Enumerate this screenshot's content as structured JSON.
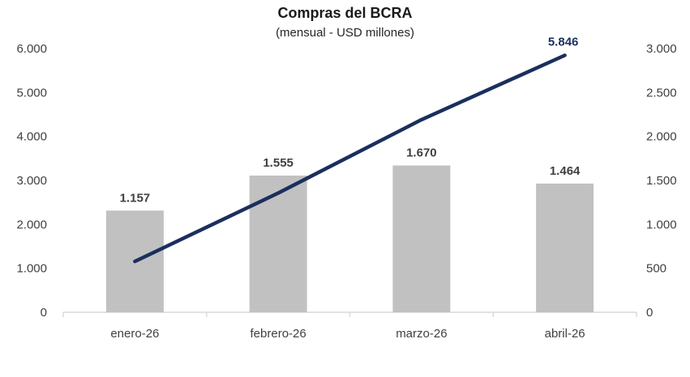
{
  "chart_data": {
    "type": "combo-bar-line",
    "title": "Compras del BCRA",
    "subtitle": "(mensual - USD millones)",
    "categories": [
      "enero-26",
      "febrero-26",
      "marzo-26",
      "abril-26"
    ],
    "series": [
      {
        "type": "bar",
        "axis": "right",
        "values": [
          1157,
          1555,
          1670,
          1464
        ],
        "labels": [
          "1.157",
          "1.555",
          "1.670",
          "1.464"
        ],
        "color": "#C1C1C1"
      },
      {
        "type": "line",
        "axis": "left",
        "values": [
          1157,
          2712,
          4382,
          5846
        ],
        "last_label": "5.846",
        "color": "#1B2F5E"
      }
    ],
    "left_axis": {
      "min": 0,
      "max": 6000,
      "step": 1000,
      "tick_labels": [
        "0",
        "1.000",
        "2.000",
        "3.000",
        "4.000",
        "5.000",
        "6.000"
      ]
    },
    "right_axis": {
      "min": 0,
      "max": 3000,
      "step": 500,
      "tick_labels": [
        "0",
        "500",
        "1.000",
        "1.500",
        "2.000",
        "2.500",
        "3.000"
      ]
    },
    "grid": false,
    "legend": "none",
    "colors": {
      "axis_line": "#D9D9D9",
      "tick_label": "#404040",
      "bar_label": "#404040",
      "line_label": "#1B2F5E",
      "title": "#1A1A1A"
    }
  }
}
